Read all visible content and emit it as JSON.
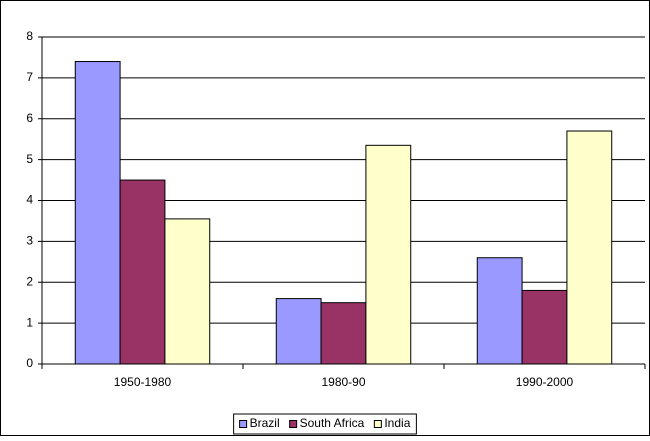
{
  "chart_data": {
    "type": "bar",
    "categories": [
      "1950-1980",
      "1980-90",
      "1990-2000"
    ],
    "series": [
      {
        "name": "Brazil",
        "color": "#9999ff",
        "values": [
          7.4,
          1.6,
          2.6
        ]
      },
      {
        "name": "South Africa",
        "color": "#993366",
        "values": [
          4.5,
          1.5,
          1.8
        ]
      },
      {
        "name": "India",
        "color": "#ffffcc",
        "values": [
          3.55,
          5.35,
          5.7
        ]
      }
    ],
    "ylim": [
      0,
      8
    ],
    "yticks": [
      0,
      1,
      2,
      3,
      4,
      5,
      6,
      7,
      8
    ],
    "grid": true,
    "legend": "bottom"
  }
}
